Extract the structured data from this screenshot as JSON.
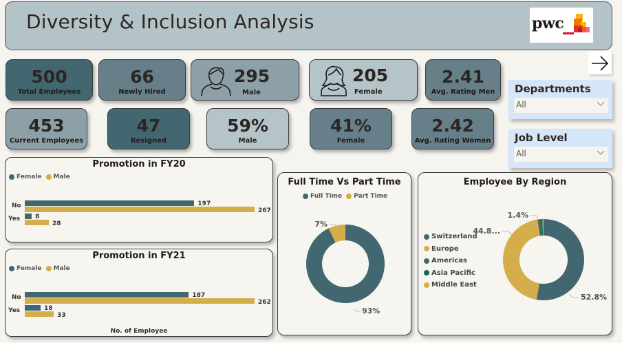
{
  "header": {
    "title": "Diversity & Inclusion Analysis",
    "logo_text": "pwc"
  },
  "nav": {
    "next_icon": "arrow-right-icon"
  },
  "colors": {
    "dark_teal": "#436770",
    "mid_teal": "#677f88",
    "gray_teal": "#8da0a8",
    "light_teal": "#b5c4c8",
    "female": "#436770",
    "male": "#d4ae4a",
    "asia_pacific": "#0e6b4a",
    "slicer_bg": "#d5e6f8"
  },
  "kpis": {
    "total_employees": {
      "value": "500",
      "label": "Total Employees"
    },
    "newly_hired": {
      "value": "66",
      "label": "Newly Hired"
    },
    "male_count": {
      "value": "295",
      "label": "Male"
    },
    "female_count": {
      "value": "205",
      "label": "Female"
    },
    "avg_rating_men": {
      "value": "2.41",
      "label": "Avg. Rating Men"
    },
    "current_employees": {
      "value": "453",
      "label": "Current Employees"
    },
    "resigned": {
      "value": "47",
      "label": "Resigned"
    },
    "male_pct": {
      "value": "59%",
      "label": "Male"
    },
    "female_pct": {
      "value": "41%",
      "label": "Female"
    },
    "avg_rating_women": {
      "value": "2.42",
      "label": "Avg. Rating Women"
    }
  },
  "slicers": {
    "departments": {
      "title": "Departments",
      "value": "All"
    },
    "job_level": {
      "title": "Job Level",
      "value": "All"
    }
  },
  "chart_data": [
    {
      "type": "bar",
      "orientation": "horizontal",
      "title": "Promotion in FY20",
      "categories": [
        "No",
        "Yes"
      ],
      "series": [
        {
          "name": "Female",
          "values": [
            197,
            8
          ]
        },
        {
          "name": "Male",
          "values": [
            267,
            28
          ]
        }
      ],
      "xlabel": "",
      "ylabel": "",
      "legend": "top-left",
      "xlim": [
        0,
        267
      ]
    },
    {
      "type": "bar",
      "orientation": "horizontal",
      "title": "Promotion in FY21",
      "categories": [
        "No",
        "Yes"
      ],
      "series": [
        {
          "name": "Female",
          "values": [
            187,
            18
          ]
        },
        {
          "name": "Male",
          "values": [
            262,
            33
          ]
        }
      ],
      "xlabel": "No. of Employee",
      "ylabel": "",
      "legend": "top-left",
      "xlim": [
        0,
        262
      ]
    },
    {
      "type": "pie",
      "donut": true,
      "title": "Full Time Vs Part Time",
      "legend": "top-center",
      "slices": [
        {
          "name": "Full Time",
          "value": 93,
          "label": "93%"
        },
        {
          "name": "Part Time",
          "value": 7,
          "label": "7%"
        }
      ]
    },
    {
      "type": "pie",
      "donut": true,
      "title": "Employee By Region",
      "legend": "left",
      "slices": [
        {
          "name": "Switzerland",
          "value": 52.8,
          "label": "52.8%"
        },
        {
          "name": "Europe",
          "value": 44.8,
          "label": "44.8..."
        },
        {
          "name": "Americas",
          "value": 1.4,
          "label": "1.4%"
        },
        {
          "name": "Asia Pacific",
          "value": 0.6,
          "label": ""
        },
        {
          "name": "Middle East",
          "value": 0.4,
          "label": ""
        }
      ]
    }
  ]
}
